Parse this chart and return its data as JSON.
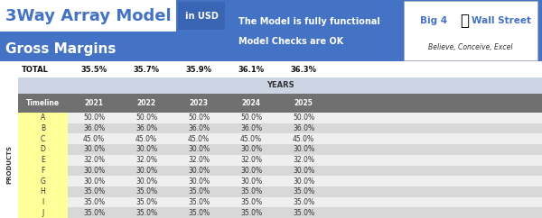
{
  "title": "3Way Array Model",
  "title_tag": "in USD",
  "subtitle": "Gross Margins",
  "msg_line1": "The Model is fully functional",
  "msg_line2": "Model Checks are OK",
  "logo_sub": "Believe, Conceive, Excel",
  "header_bg": "#4472C4",
  "years_label": "YEARS",
  "totals_label": "TOTAL",
  "totals": [
    "35.5%",
    "35.7%",
    "35.9%",
    "36.1%",
    "36.3%"
  ],
  "col_years": [
    "2021",
    "2022",
    "2023",
    "2024",
    "2025"
  ],
  "col_header": "Timeline",
  "row_labels": [
    "A",
    "B",
    "C",
    "D",
    "E",
    "F",
    "G",
    "H",
    "I",
    "J"
  ],
  "products_label": "PRODUCTS",
  "table_data": [
    [
      "50.0%",
      "50.0%",
      "50.0%",
      "50.0%",
      "50.0%"
    ],
    [
      "36.0%",
      "36.0%",
      "36.0%",
      "36.0%",
      "36.0%"
    ],
    [
      "45.0%",
      "45.0%",
      "45.0%",
      "45.0%",
      "45.0%"
    ],
    [
      "30.0%",
      "30.0%",
      "30.0%",
      "30.0%",
      "30.0%"
    ],
    [
      "32.0%",
      "32.0%",
      "32.0%",
      "32.0%",
      "32.0%"
    ],
    [
      "30.0%",
      "30.0%",
      "30.0%",
      "30.0%",
      "30.0%"
    ],
    [
      "30.0%",
      "30.0%",
      "30.0%",
      "30.0%",
      "30.0%"
    ],
    [
      "35.0%",
      "35.0%",
      "35.0%",
      "35.0%",
      "35.0%"
    ],
    [
      "35.0%",
      "35.0%",
      "35.0%",
      "35.0%",
      "35.0%"
    ],
    [
      "35.0%",
      "35.0%",
      "35.0%",
      "35.0%",
      "35.0%"
    ]
  ],
  "table_header_bg": "#707070",
  "table_row_odd": "#EFEFEF",
  "table_row_even": "#D8D8D8",
  "table_outer_bg": "#BBBBBB",
  "years_row_bg": "#CDD5E5",
  "cell_text_color": "#333333",
  "header_cell_text": "#FFFFFF",
  "row_label_bg": "#FFFF99",
  "tag_box_bg": "#3A65B5",
  "fig_w": 6.0,
  "fig_h": 2.42,
  "dpi": 100
}
